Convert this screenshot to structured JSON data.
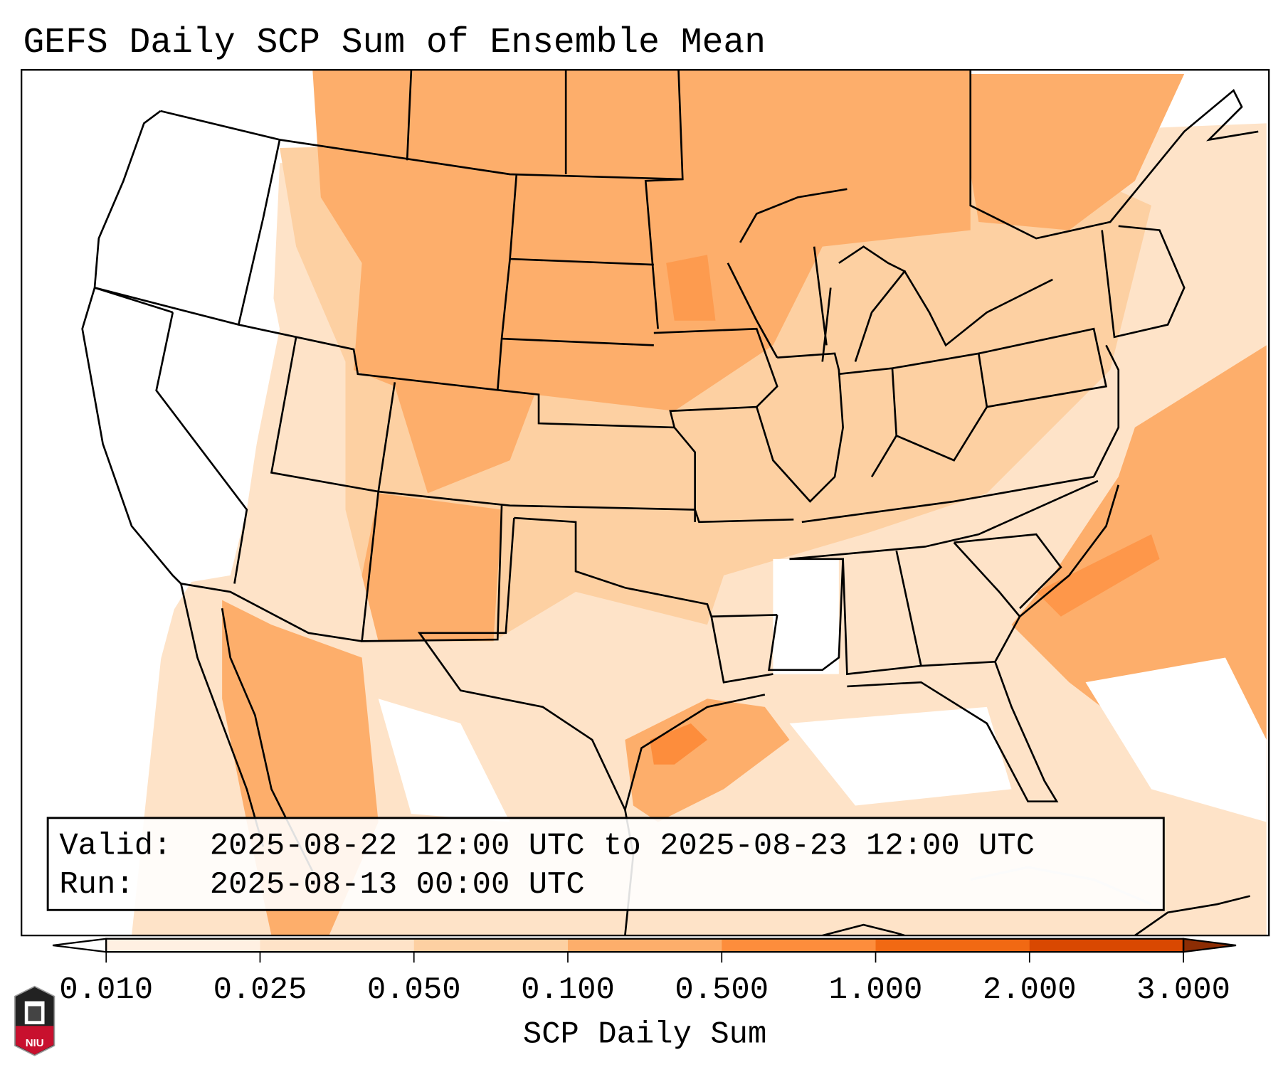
{
  "title": "GEFS Daily SCP Sum of Ensemble Mean",
  "info_box": {
    "valid_label": "Valid:",
    "valid_value": "2025-08-22 12:00 UTC to 2025-08-23 12:00 UTC",
    "run_label": "Run:",
    "run_value": "2025-08-13 00:00 UTC"
  },
  "colorbar": {
    "label": "SCP Daily Sum",
    "ticks": [
      "0.010",
      "0.025",
      "0.050",
      "0.100",
      "0.500",
      "1.000",
      "2.000",
      "3.000"
    ],
    "colors": [
      "#fff0e2",
      "#fee3c8",
      "#fdd0a2",
      "#fdae6b",
      "#fd8d3c",
      "#f16913",
      "#d94801",
      "#8c2d04"
    ]
  },
  "logo": {
    "text": "NIU"
  }
}
